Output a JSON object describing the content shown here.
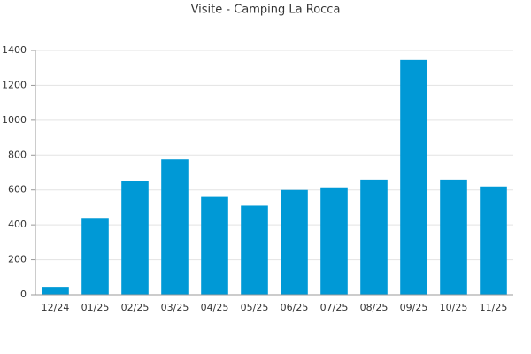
{
  "chart_data": {
    "type": "bar",
    "title": "Visite - Camping La Rocca",
    "categories": [
      "12/24",
      "01/25",
      "02/25",
      "03/25",
      "04/25",
      "05/25",
      "06/25",
      "07/25",
      "08/25",
      "09/25",
      "10/25",
      "11/25"
    ],
    "values": [
      45,
      440,
      650,
      775,
      560,
      510,
      600,
      615,
      660,
      1345,
      660,
      620
    ],
    "color": "#0099d6",
    "ylim": [
      0,
      1400
    ],
    "yticks": [
      0,
      200,
      400,
      600,
      800,
      1000,
      1200,
      1400
    ],
    "grid": true
  }
}
